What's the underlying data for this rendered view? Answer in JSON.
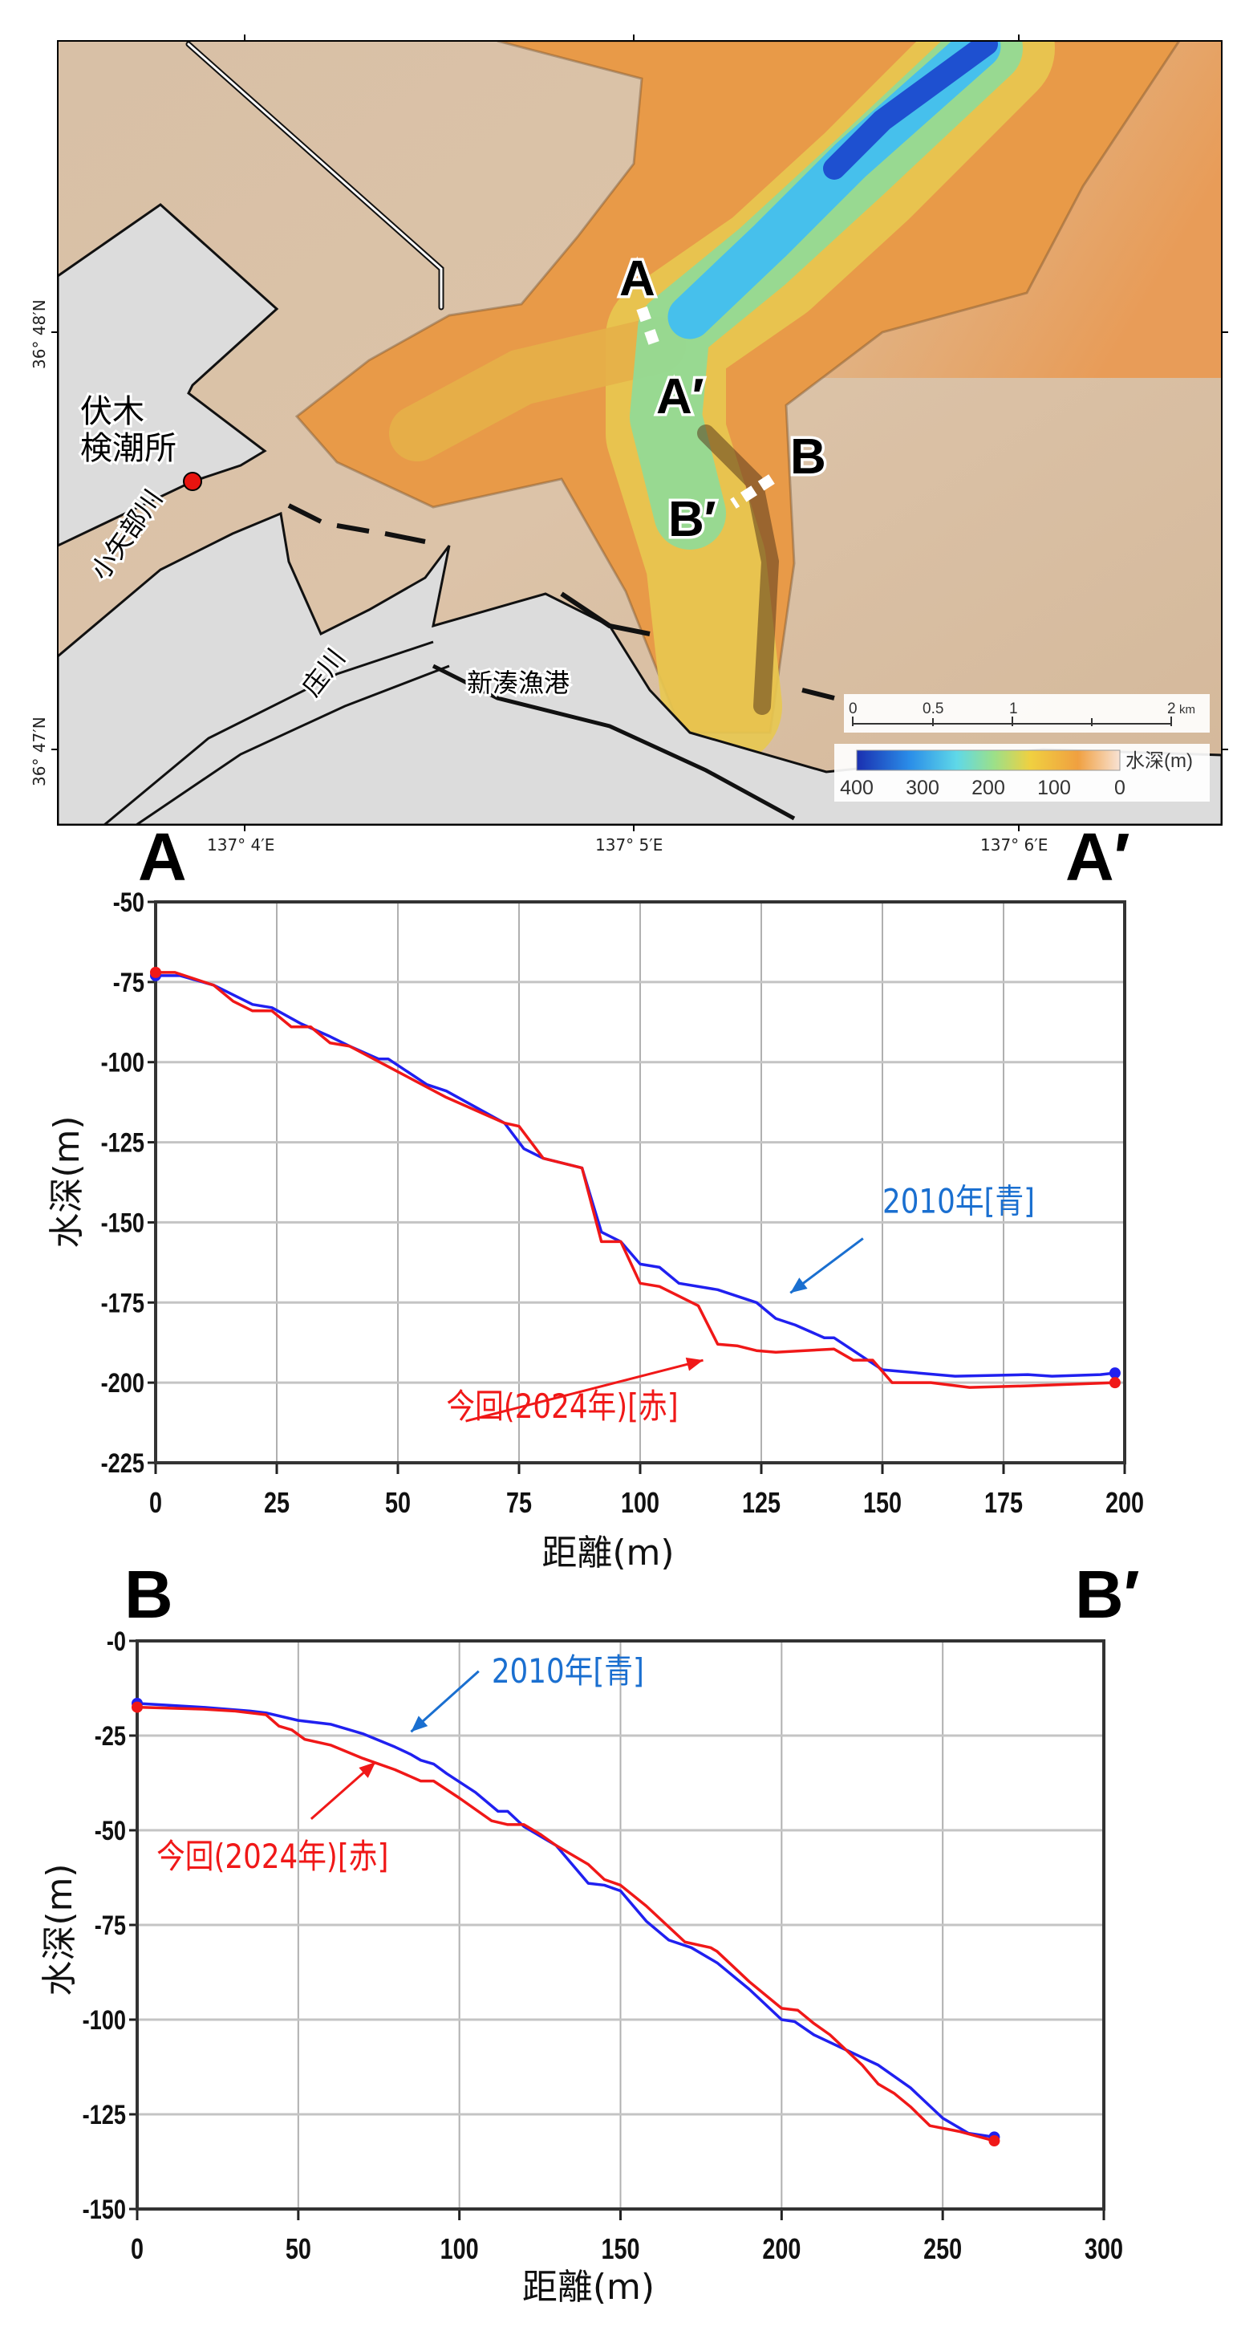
{
  "map": {
    "place_labels": {
      "tide_station_line1": "伏木",
      "tide_station_line2": "検潮所",
      "river_oyabe": "小矢部川",
      "river_sho": "庄川",
      "harbor": "新湊漁港"
    },
    "section_labels": {
      "a": "A",
      "a_prime": "A′",
      "b": "B",
      "b_prime": "B′"
    },
    "latitude_labels": [
      "36° 48′N",
      "36° 47′N"
    ],
    "longitude_labels": [
      "137° 4′E",
      "137° 5′E",
      "137° 6′E"
    ],
    "scale_bar": {
      "labels": [
        "0",
        "0.5",
        "1",
        "2"
      ],
      "unit": "km"
    },
    "colorbar": {
      "title": "水深(m)",
      "labels": [
        "400",
        "300",
        "200",
        "100",
        "0"
      ],
      "colors": [
        "#1a2fb0",
        "#2a8de8",
        "#5fd8e8",
        "#9be08a",
        "#f0d040",
        "#f0a040",
        "#f6d6c0"
      ]
    },
    "tide_station_marker_color": "#e8140f"
  },
  "profiles": {
    "a": {
      "left": "A",
      "right": "A′"
    },
    "b": {
      "left": "B",
      "right": "B′"
    }
  },
  "chart_data": [
    {
      "type": "line",
      "xlabel": "距離(m)",
      "ylabel": "水深(m)",
      "xlim": [
        0,
        200
      ],
      "ylim": [
        -225,
        -50
      ],
      "xticks": [
        0,
        25,
        50,
        75,
        100,
        125,
        150,
        175,
        200
      ],
      "yticks": [
        -50,
        -75,
        -100,
        -125,
        -150,
        -175,
        -200,
        -225
      ],
      "ytick_labels": [
        "-50",
        "-75",
        "-100",
        "-125",
        "-150",
        "-175",
        "-200",
        "-225"
      ],
      "grid": true,
      "series": [
        {
          "name": "2010年[青]",
          "color": "#2020f0",
          "x": [
            0,
            5,
            12,
            20,
            24,
            30,
            36,
            40,
            46,
            48,
            56,
            60,
            72,
            76,
            80,
            88,
            92,
            96,
            100,
            104,
            108,
            116,
            124,
            128,
            132,
            138,
            140,
            144,
            150,
            165,
            180,
            185,
            195,
            198
          ],
          "y": [
            -73,
            -73,
            -76,
            -82,
            -83,
            -88,
            -92,
            -95,
            -99,
            -99,
            -107,
            -109,
            -119,
            -127,
            -130,
            -133,
            -153,
            -156,
            -163,
            -164,
            -169,
            -171,
            -175,
            -180,
            -182,
            -186,
            -186,
            -190,
            -196,
            -198,
            -197.5,
            -198,
            -197.5,
            -197
          ]
        },
        {
          "name": "今回(2024年)[赤]",
          "color": "#f01818",
          "x": [
            0,
            4,
            12,
            16,
            20,
            24,
            28,
            32,
            36,
            40,
            50,
            60,
            72,
            75,
            80,
            88,
            92,
            96,
            100,
            104,
            112,
            116,
            120,
            124,
            128,
            140,
            144,
            148,
            152,
            160,
            168,
            180,
            198
          ],
          "y": [
            -72,
            -72,
            -76,
            -81,
            -84,
            -84,
            -89,
            -89,
            -94,
            -95,
            -103,
            -111,
            -119,
            -120,
            -130,
            -133,
            -156,
            -156,
            -169,
            -170,
            -176,
            -188,
            -188.5,
            -190,
            -190.5,
            -189.5,
            -193,
            -193,
            -200,
            -200,
            -201.5,
            -201,
            -200
          ]
        }
      ],
      "annotations": [
        {
          "text": "2010年[青]",
          "color": "#1a6fd0",
          "text_at": [
            150,
            -147
          ],
          "arrow_from": [
            146,
            -155
          ],
          "arrow_to": [
            131,
            -172
          ]
        },
        {
          "text": "今回(2024年)[赤]",
          "color": "#f01818",
          "text_at": [
            60,
            -211
          ],
          "arrow_from": [
            64,
            -212
          ],
          "arrow_to": [
            113,
            -193
          ]
        }
      ]
    },
    {
      "type": "line",
      "xlabel": "距離(m)",
      "ylabel": "水深(m)",
      "xlim": [
        0,
        300
      ],
      "ylim": [
        -150,
        0
      ],
      "xticks": [
        0,
        50,
        100,
        150,
        200,
        250,
        300
      ],
      "yticks": [
        0,
        -25,
        -50,
        -75,
        -100,
        -125,
        -150
      ],
      "ytick_labels": [
        "-0",
        "-25",
        "-50",
        "-75",
        "-100",
        "-125",
        "-150"
      ],
      "grid": true,
      "series": [
        {
          "name": "2010年[青]",
          "color": "#2020f0",
          "x": [
            0,
            10,
            20,
            35,
            40,
            50,
            60,
            70,
            80,
            85,
            88,
            92,
            96,
            105,
            112,
            115,
            120,
            126,
            130,
            136,
            140,
            145,
            150,
            158,
            165,
            172,
            180,
            190,
            200,
            204,
            210,
            215,
            220,
            225,
            230,
            240,
            250,
            258,
            266
          ],
          "y": [
            -16.5,
            -17,
            -17.5,
            -18.5,
            -19,
            -21,
            -22,
            -24.5,
            -28,
            -30,
            -31.5,
            -32.5,
            -35,
            -40,
            -45,
            -45,
            -49,
            -52,
            -54,
            -60,
            -64,
            -64.5,
            -66,
            -74,
            -79,
            -81,
            -85,
            -92,
            -100,
            -100.5,
            -104,
            -106,
            -108,
            -110,
            -112,
            -118,
            -126,
            -130,
            -131
          ]
        },
        {
          "name": "今回(2024年)[赤]",
          "color": "#f01818",
          "x": [
            0,
            20,
            30,
            40,
            44,
            48,
            52,
            60,
            70,
            80,
            88,
            92,
            100,
            110,
            115,
            120,
            125,
            130,
            140,
            145,
            150,
            158,
            170,
            178,
            180,
            190,
            200,
            205,
            210,
            215,
            220,
            225,
            230,
            235,
            240,
            246,
            255,
            266
          ],
          "y": [
            -17.5,
            -18,
            -18.5,
            -19.5,
            -22.5,
            -23.5,
            -26,
            -27.5,
            -31,
            -34,
            -37,
            -37,
            -41.5,
            -47.5,
            -48.5,
            -48.5,
            -51,
            -54,
            -59,
            -63,
            -64.5,
            -70,
            -79.5,
            -81,
            -82,
            -90,
            -97,
            -97.5,
            -101,
            -104,
            -108,
            -112,
            -117,
            -119.5,
            -123,
            -128,
            -129.5,
            -132
          ]
        }
      ],
      "annotations": [
        {
          "text": "2010年[青]",
          "color": "#1a6fd0",
          "text_at": [
            110,
            -11
          ],
          "arrow_from": [
            106,
            -8
          ],
          "arrow_to": [
            85,
            -24
          ]
        },
        {
          "text": "今回(2024年)[赤]",
          "color": "#f01818",
          "text_at": [
            6,
            -60
          ],
          "arrow_from": [
            54,
            -47
          ],
          "arrow_to": [
            74,
            -32
          ]
        }
      ]
    }
  ]
}
